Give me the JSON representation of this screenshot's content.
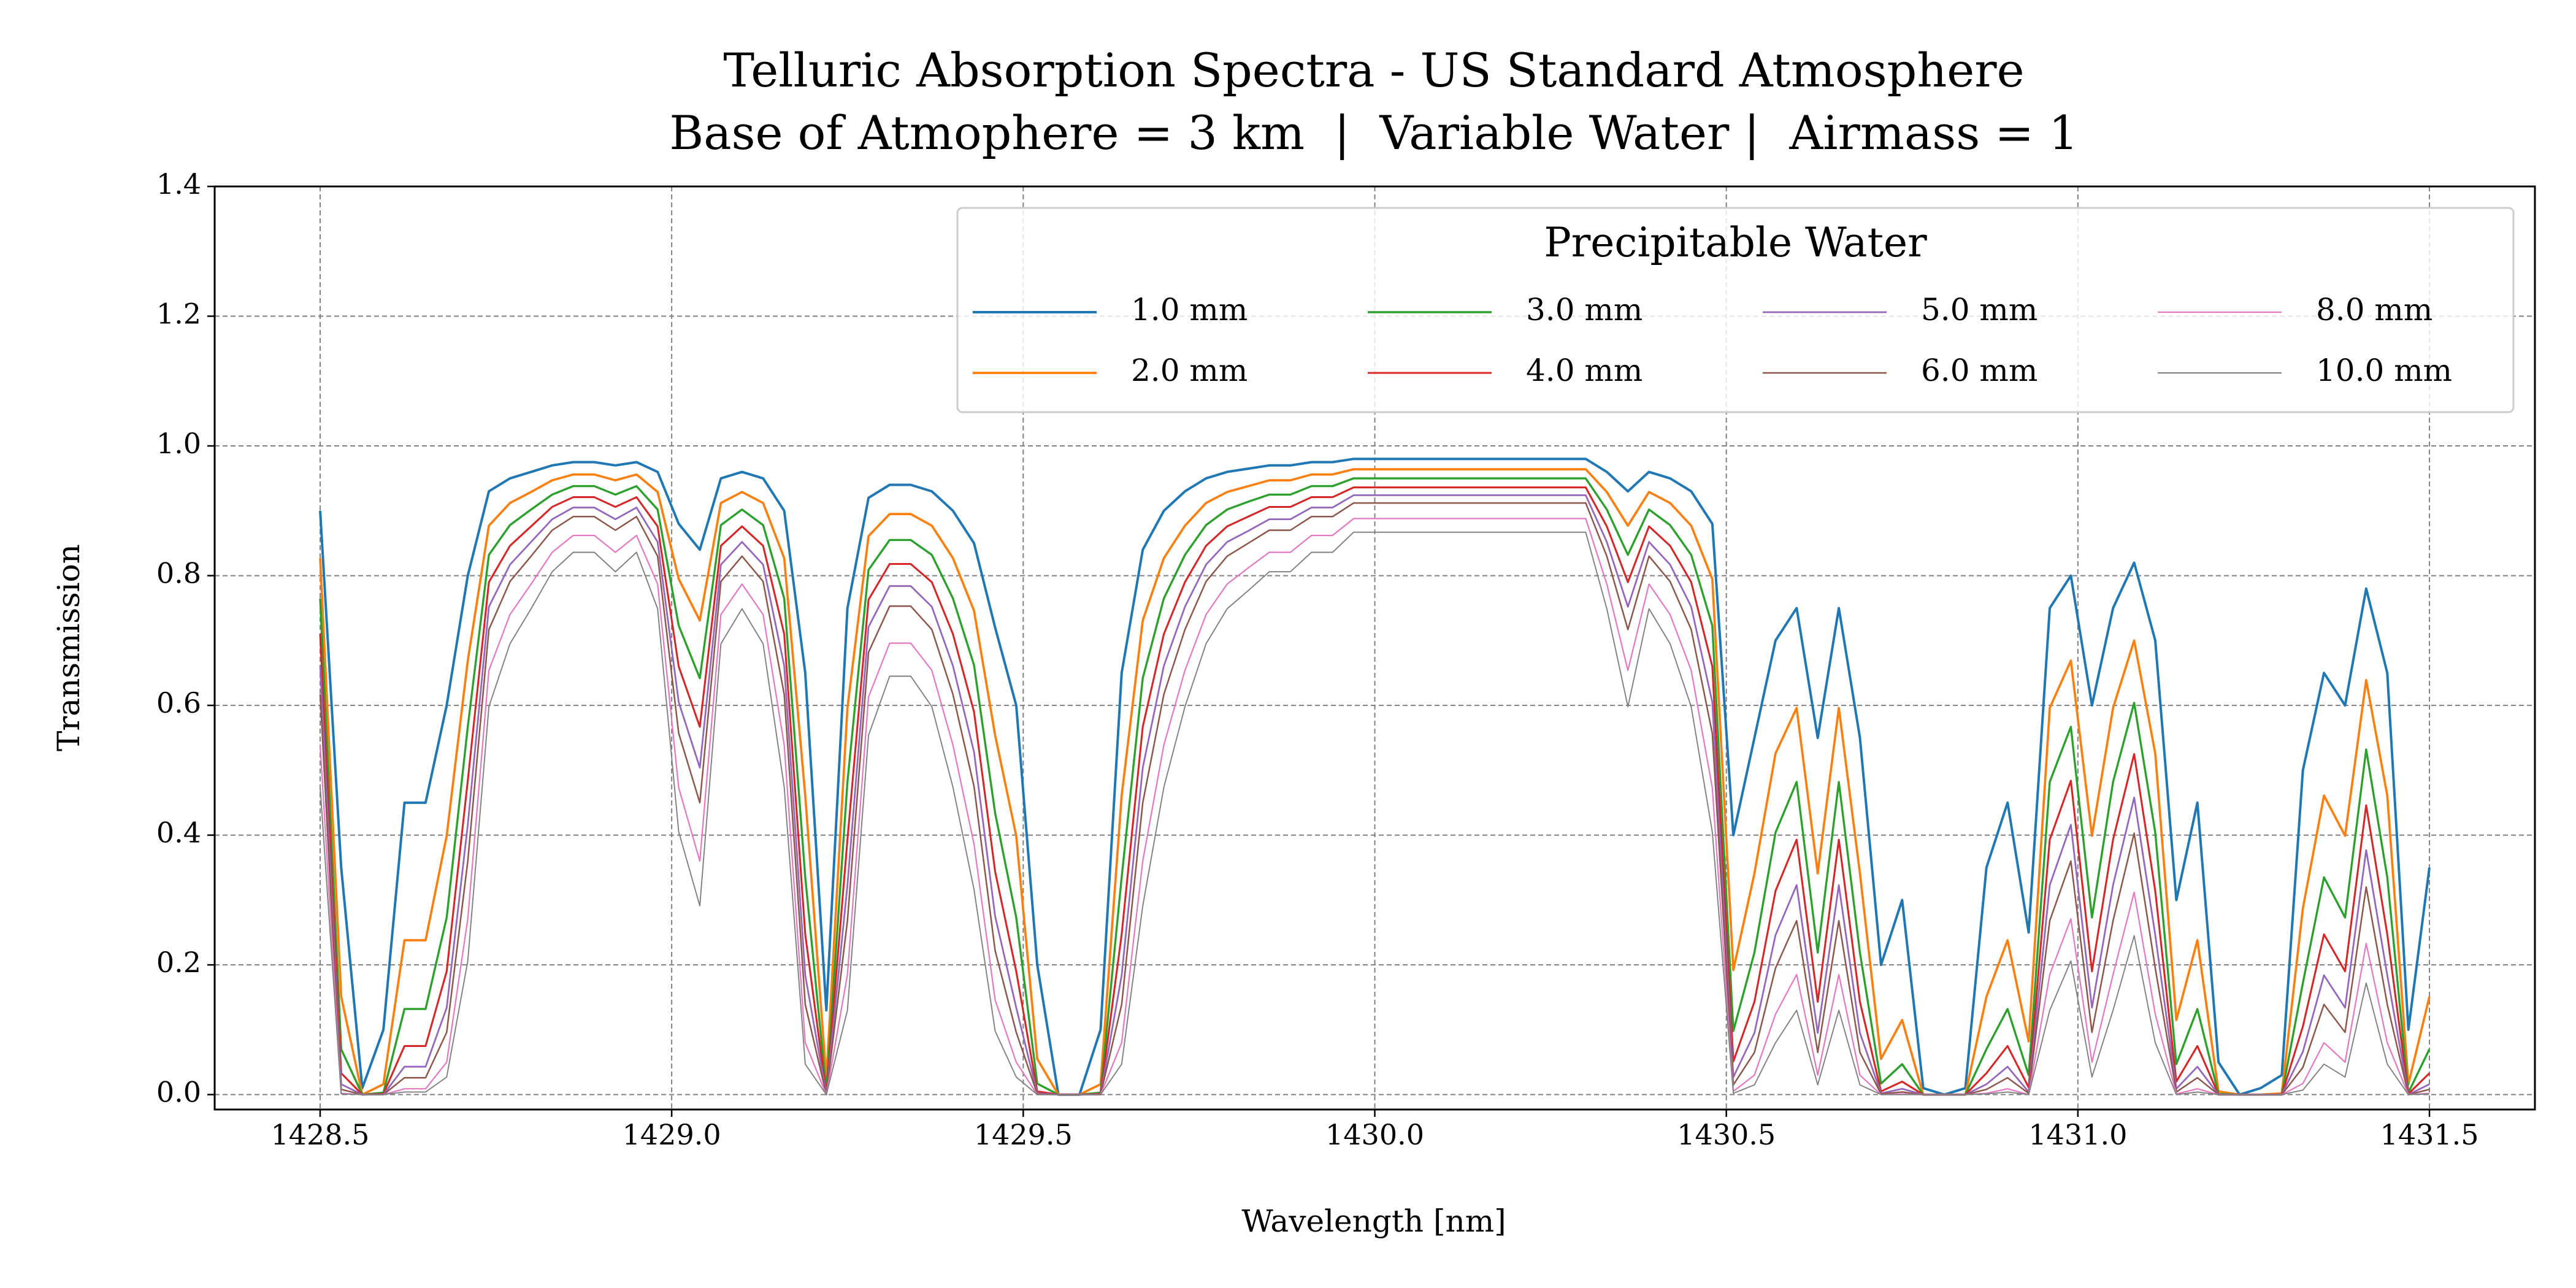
{
  "chart_data": {
    "type": "line",
    "title": "Telluric Absorption Spectra - US Standard Atmosphere",
    "subtitle": "Base of Atmophere = 3 km  |  Variable Water |  Airmass = 1",
    "xlabel": "Wavelength [nm]",
    "ylabel": "Transmission",
    "legend_title": "Precipitable Water",
    "legend": "upper right",
    "legend_columns": 4,
    "grid": true,
    "xlim": [
      1428.35,
      1431.65
    ],
    "ylim": [
      -0.023,
      1.4
    ],
    "xticks": [
      1428.5,
      {
        "value": 1429,
        "label": "1429.0"
      },
      1429.5,
      {
        "value": 1430,
        "label": "1430.0"
      },
      1430.5,
      {
        "value": 1431,
        "label": "1431.0"
      },
      1431.5
    ],
    "yticks": [
      {
        "value": 0,
        "label": "0.0"
      },
      0.2,
      0.4,
      0.6,
      0.8,
      {
        "value": 1,
        "label": "1.0"
      },
      1.2,
      1.4
    ],
    "x": [
      1428.5,
      1428.53,
      1428.56,
      1428.59,
      1428.62,
      1428.65,
      1428.68,
      1428.71,
      1428.74,
      1428.77,
      1428.8,
      1428.83,
      1428.86,
      1428.89,
      1428.92,
      1428.95,
      1428.98,
      1429.01,
      1429.04,
      1429.07,
      1429.1,
      1429.13,
      1429.16,
      1429.19,
      1429.22,
      1429.25,
      1429.28,
      1429.31,
      1429.34,
      1429.37,
      1429.4,
      1429.43,
      1429.46,
      1429.49,
      1429.52,
      1429.55,
      1429.58,
      1429.61,
      1429.64,
      1429.67,
      1429.7,
      1429.73,
      1429.76,
      1429.79,
      1429.82,
      1429.85,
      1429.88,
      1429.91,
      1429.94,
      1429.97,
      1430.0,
      1430.03,
      1430.06,
      1430.09,
      1430.12,
      1430.15,
      1430.18,
      1430.21,
      1430.24,
      1430.27,
      1430.3,
      1430.33,
      1430.36,
      1430.39,
      1430.42,
      1430.45,
      1430.48,
      1430.51,
      1430.54,
      1430.57,
      1430.6,
      1430.63,
      1430.66,
      1430.69,
      1430.72,
      1430.75,
      1430.78,
      1430.81,
      1430.84,
      1430.87,
      1430.9,
      1430.93,
      1430.96,
      1430.99,
      1431.02,
      1431.05,
      1431.08,
      1431.11,
      1431.14,
      1431.17,
      1431.2,
      1431.23,
      1431.26,
      1431.29,
      1431.32,
      1431.35,
      1431.38,
      1431.41,
      1431.44,
      1431.47,
      1431.5
    ],
    "series": [
      {
        "name": "1.0 mm",
        "color": "#1f77b4",
        "values": [
          0.9,
          0.35,
          0.01,
          0.1,
          0.45,
          0.45,
          0.6,
          0.8,
          0.93,
          0.95,
          0.96,
          0.97,
          0.975,
          0.975,
          0.97,
          0.975,
          0.96,
          0.88,
          0.84,
          0.95,
          0.96,
          0.95,
          0.9,
          0.65,
          0.13,
          0.75,
          0.92,
          0.94,
          0.94,
          0.93,
          0.9,
          0.85,
          0.72,
          0.6,
          0.2,
          0,
          0,
          0.1,
          0.65,
          0.84,
          0.9,
          0.93,
          0.95,
          0.96,
          0.965,
          0.97,
          0.97,
          0.975,
          0.975,
          0.98,
          0.98,
          0.98,
          0.98,
          0.98,
          0.98,
          0.98,
          0.98,
          0.98,
          0.98,
          0.98,
          0.98,
          0.96,
          0.93,
          0.96,
          0.95,
          0.93,
          0.88,
          0.4,
          0.55,
          0.7,
          0.75,
          0.55,
          0.75,
          0.55,
          0.2,
          0.3,
          0.01,
          0,
          0.01,
          0.35,
          0.45,
          0.25,
          0.75,
          0.8,
          0.6,
          0.75,
          0.82,
          0.7,
          0.3,
          0.45,
          0.05,
          0,
          0.01,
          0.03,
          0.5,
          0.65,
          0.6,
          0.78,
          0.65,
          0.1,
          0.35
        ]
      },
      {
        "name": "2.0 mm",
        "color": "#ff7f0e",
        "values": [
          0.827,
          0.151,
          0,
          0.016,
          0.238,
          0.238,
          0.399,
          0.669,
          0.877,
          0.912,
          0.929,
          0.947,
          0.956,
          0.956,
          0.947,
          0.956,
          0.929,
          0.795,
          0.731,
          0.912,
          0.929,
          0.912,
          0.827,
          0.461,
          0.025,
          0.596,
          0.861,
          0.895,
          0.895,
          0.877,
          0.827,
          0.746,
          0.554,
          0.399,
          0.055,
          0,
          0,
          0.016,
          0.461,
          0.731,
          0.827,
          0.877,
          0.912,
          0.929,
          0.938,
          0.947,
          0.947,
          0.956,
          0.956,
          0.964,
          0.964,
          0.964,
          0.964,
          0.964,
          0.964,
          0.964,
          0.964,
          0.964,
          0.964,
          0.964,
          0.964,
          0.929,
          0.877,
          0.929,
          0.912,
          0.877,
          0.795,
          0.192,
          0.341,
          0.526,
          0.596,
          0.341,
          0.596,
          0.341,
          0.055,
          0.115,
          0,
          0,
          0,
          0.151,
          0.238,
          0.082,
          0.596,
          0.669,
          0.399,
          0.596,
          0.7,
          0.526,
          0.115,
          0.238,
          0.005,
          0,
          0,
          0.002,
          0.287,
          0.461,
          0.399,
          0.639,
          0.461,
          0.016,
          0.151
        ]
      },
      {
        "name": "3.0 mm",
        "color": "#2ca02c",
        "values": [
          0.765,
          0.07,
          0,
          0.003,
          0.132,
          0.132,
          0.273,
          0.567,
          0.832,
          0.878,
          0.902,
          0.925,
          0.938,
          0.938,
          0.925,
          0.938,
          0.902,
          0.723,
          0.642,
          0.878,
          0.902,
          0.878,
          0.765,
          0.335,
          0.006,
          0.482,
          0.809,
          0.855,
          0.855,
          0.832,
          0.765,
          0.662,
          0.434,
          0.273,
          0.017,
          0,
          0,
          0.003,
          0.335,
          0.642,
          0.765,
          0.832,
          0.878,
          0.902,
          0.914,
          0.925,
          0.925,
          0.938,
          0.938,
          0.95,
          0.95,
          0.95,
          0.95,
          0.95,
          0.95,
          0.95,
          0.95,
          0.95,
          0.95,
          0.95,
          0.95,
          0.902,
          0.832,
          0.902,
          0.878,
          0.832,
          0.723,
          0.098,
          0.219,
          0.404,
          0.482,
          0.219,
          0.482,
          0.219,
          0.017,
          0.047,
          0,
          0,
          0,
          0.07,
          0.132,
          0.03,
          0.482,
          0.567,
          0.273,
          0.482,
          0.604,
          0.404,
          0.047,
          0.132,
          0.001,
          0,
          0,
          0,
          0.172,
          0.335,
          0.273,
          0.532,
          0.335,
          0.003,
          0.07
        ]
      },
      {
        "name": "4.0 mm",
        "color": "#d62728",
        "values": [
          0.71,
          0.033,
          0,
          0.001,
          0.075,
          0.075,
          0.19,
          0.484,
          0.79,
          0.846,
          0.876,
          0.906,
          0.921,
          0.921,
          0.906,
          0.921,
          0.876,
          0.66,
          0.567,
          0.846,
          0.876,
          0.846,
          0.71,
          0.247,
          0.001,
          0.393,
          0.763,
          0.818,
          0.818,
          0.79,
          0.71,
          0.59,
          0.344,
          0.19,
          0.005,
          0,
          0,
          0.001,
          0.247,
          0.567,
          0.71,
          0.79,
          0.846,
          0.876,
          0.891,
          0.906,
          0.906,
          0.921,
          0.921,
          0.936,
          0.936,
          0.936,
          0.936,
          0.936,
          0.936,
          0.936,
          0.936,
          0.936,
          0.936,
          0.936,
          0.936,
          0.876,
          0.79,
          0.876,
          0.846,
          0.79,
          0.66,
          0.051,
          0.143,
          0.314,
          0.393,
          0.143,
          0.393,
          0.143,
          0.005,
          0.02,
          0,
          0,
          0,
          0.033,
          0.075,
          0.011,
          0.393,
          0.484,
          0.19,
          0.393,
          0.525,
          0.314,
          0.02,
          0.075,
          0,
          0,
          0,
          0,
          0.105,
          0.247,
          0.19,
          0.446,
          0.247,
          0.001,
          0.033
        ]
      },
      {
        "name": "5.0 mm",
        "color": "#9467bd",
        "values": [
          0.661,
          0.016,
          0,
          0,
          0.043,
          0.043,
          0.134,
          0.416,
          0.752,
          0.817,
          0.852,
          0.887,
          0.905,
          0.905,
          0.887,
          0.905,
          0.852,
          0.605,
          0.504,
          0.817,
          0.852,
          0.817,
          0.661,
          0.184,
          0,
          0.323,
          0.721,
          0.784,
          0.784,
          0.752,
          0.661,
          0.528,
          0.275,
          0.134,
          0.002,
          0,
          0,
          0,
          0.184,
          0.504,
          0.661,
          0.752,
          0.817,
          0.852,
          0.869,
          0.887,
          0.887,
          0.905,
          0.905,
          0.924,
          0.924,
          0.924,
          0.924,
          0.924,
          0.924,
          0.924,
          0.924,
          0.924,
          0.924,
          0.924,
          0.924,
          0.852,
          0.752,
          0.852,
          0.817,
          0.752,
          0.605,
          0.027,
          0.095,
          0.246,
          0.323,
          0.095,
          0.323,
          0.095,
          0.002,
          0.009,
          0,
          0,
          0,
          0.016,
          0.043,
          0.004,
          0.323,
          0.416,
          0.134,
          0.323,
          0.458,
          0.246,
          0.009,
          0.043,
          0,
          0,
          0,
          0,
          0.066,
          0.184,
          0.134,
          0.377,
          0.184,
          0,
          0.016
        ]
      },
      {
        "name": "6.0 mm",
        "color": "#8c564b",
        "values": [
          0.617,
          0.008,
          0,
          0,
          0.026,
          0.026,
          0.096,
          0.36,
          0.717,
          0.791,
          0.83,
          0.87,
          0.891,
          0.891,
          0.87,
          0.891,
          0.83,
          0.557,
          0.45,
          0.791,
          0.83,
          0.791,
          0.617,
          0.139,
          0,
          0.268,
          0.682,
          0.753,
          0.753,
          0.717,
          0.617,
          0.475,
          0.222,
          0.096,
          0.001,
          0,
          0,
          0,
          0.139,
          0.45,
          0.617,
          0.717,
          0.791,
          0.83,
          0.85,
          0.87,
          0.87,
          0.891,
          0.891,
          0.912,
          0.912,
          0.912,
          0.912,
          0.912,
          0.912,
          0.912,
          0.912,
          0.912,
          0.912,
          0.912,
          0.912,
          0.83,
          0.717,
          0.83,
          0.791,
          0.717,
          0.557,
          0.015,
          0.065,
          0.195,
          0.268,
          0.065,
          0.268,
          0.065,
          0.001,
          0.004,
          0,
          0,
          0,
          0.008,
          0.026,
          0.002,
          0.268,
          0.36,
          0.096,
          0.268,
          0.403,
          0.195,
          0.004,
          0.026,
          0,
          0,
          0,
          0,
          0.042,
          0.139,
          0.096,
          0.32,
          0.139,
          0,
          0.008
        ]
      },
      {
        "name": "8.0 mm",
        "color": "#e377c2",
        "values": [
          0.539,
          0.002,
          0,
          0,
          0.009,
          0.009,
          0.05,
          0.271,
          0.654,
          0.74,
          0.787,
          0.836,
          0.862,
          0.862,
          0.836,
          0.862,
          0.787,
          0.473,
          0.36,
          0.74,
          0.787,
          0.74,
          0.539,
          0.08,
          0,
          0.185,
          0.613,
          0.696,
          0.696,
          0.654,
          0.539,
          0.386,
          0.146,
          0.05,
          0,
          0,
          0,
          0,
          0.08,
          0.36,
          0.539,
          0.654,
          0.74,
          0.787,
          0.812,
          0.836,
          0.836,
          0.862,
          0.862,
          0.888,
          0.888,
          0.888,
          0.888,
          0.888,
          0.888,
          0.888,
          0.888,
          0.888,
          0.888,
          0.888,
          0.888,
          0.787,
          0.654,
          0.787,
          0.74,
          0.654,
          0.473,
          0.005,
          0.03,
          0.124,
          0.185,
          0.03,
          0.185,
          0.03,
          0,
          0.001,
          0,
          0,
          0,
          0.002,
          0.009,
          0,
          0.185,
          0.271,
          0.05,
          0.185,
          0.312,
          0.124,
          0.001,
          0.009,
          0,
          0,
          0,
          0,
          0.017,
          0.08,
          0.05,
          0.233,
          0.08,
          0,
          0.002
        ]
      },
      {
        "name": "10.0 mm",
        "color": "#7f7f7f",
        "values": [
          0.474,
          0.001,
          0,
          0,
          0.004,
          0.004,
          0.027,
          0.206,
          0.598,
          0.695,
          0.749,
          0.806,
          0.836,
          0.836,
          0.806,
          0.836,
          0.749,
          0.405,
          0.291,
          0.695,
          0.749,
          0.695,
          0.474,
          0.047,
          0,
          0.13,
          0.554,
          0.645,
          0.645,
          0.598,
          0.474,
          0.316,
          0.098,
          0.027,
          0,
          0,
          0,
          0,
          0.047,
          0.291,
          0.474,
          0.598,
          0.695,
          0.749,
          0.777,
          0.806,
          0.806,
          0.836,
          0.836,
          0.867,
          0.867,
          0.867,
          0.867,
          0.867,
          0.867,
          0.867,
          0.867,
          0.867,
          0.867,
          0.867,
          0.867,
          0.749,
          0.598,
          0.749,
          0.695,
          0.598,
          0.405,
          0.002,
          0.015,
          0.08,
          0.13,
          0.015,
          0.13,
          0.015,
          0,
          0,
          0,
          0,
          0,
          0.001,
          0.004,
          0,
          0.13,
          0.206,
          0.027,
          0.13,
          0.245,
          0.08,
          0,
          0.004,
          0,
          0,
          0,
          0,
          0.007,
          0.047,
          0.027,
          0.172,
          0.047,
          0,
          0.001
        ]
      }
    ]
  }
}
